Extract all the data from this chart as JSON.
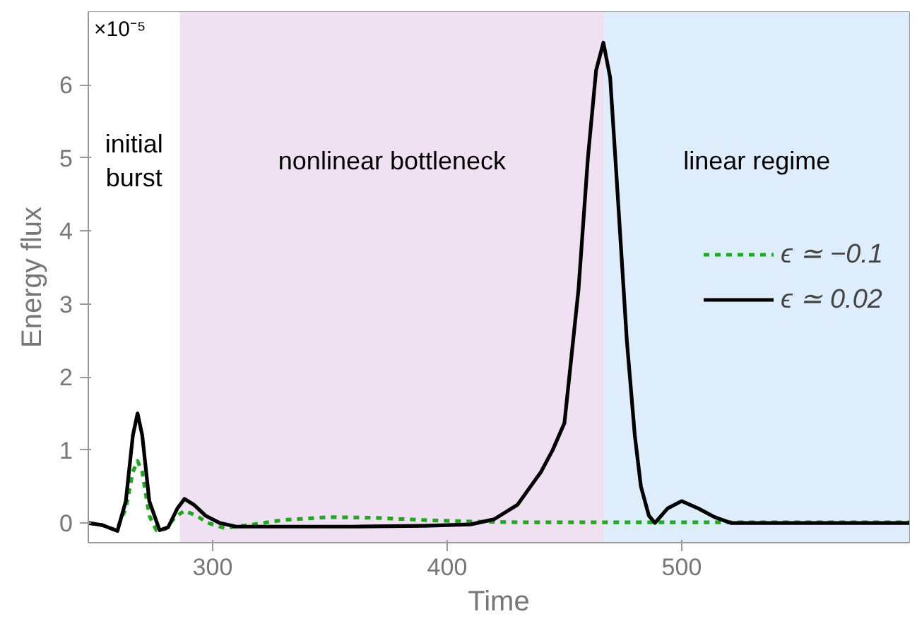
{
  "chart_data": {
    "type": "line",
    "xlabel": "Time",
    "ylabel": "Energy flux",
    "annotations": [
      "×10⁻⁵"
    ],
    "xlim": [
      247,
      597
    ],
    "ylim": [
      -0.27,
      7
    ],
    "xticks": [
      300,
      400,
      500
    ],
    "yticks": [
      0,
      1,
      2,
      3,
      4,
      5,
      6
    ],
    "bands": [
      {
        "axis": "x",
        "from": 247,
        "to": 286,
        "label": "initial\nburst",
        "color": "#ffffff"
      },
      {
        "axis": "x",
        "from": 286,
        "to": 467,
        "label": "nonlinear bottleneck",
        "color": "#efe1f1"
      },
      {
        "axis": "x",
        "from": 467,
        "to": 597,
        "label": "linear regime",
        "color": "#ddedfc"
      }
    ],
    "legend": "right",
    "grid": false,
    "series": [
      {
        "name": "ϵ ≃ −0.1",
        "color": "#1aaa1a",
        "line_style": "dashed",
        "x": [
          247,
          253,
          259,
          263,
          266,
          268,
          270,
          273,
          276,
          280,
          284,
          288,
          293,
          298,
          305,
          315,
          330,
          350,
          370,
          390,
          410,
          430,
          460,
          500,
          540,
          597
        ],
        "values": [
          0,
          -0.03,
          -0.1,
          0.2,
          0.7,
          0.85,
          0.7,
          0.1,
          -0.1,
          -0.08,
          0.08,
          0.17,
          0.1,
          0.0,
          -0.07,
          -0.03,
          0.04,
          0.08,
          0.07,
          0.04,
          0.02,
          0.01,
          0.01,
          0.01,
          0.01,
          0.01
        ]
      },
      {
        "name": "ϵ ≃ 0.02",
        "color": "#000000",
        "line_style": "solid",
        "x": [
          247,
          253,
          259.4,
          263,
          266,
          268,
          270,
          273,
          277.4,
          281,
          285,
          288,
          292,
          297,
          303,
          310,
          330,
          360,
          390,
          410,
          420,
          430,
          440,
          445,
          450,
          456,
          460,
          463.5,
          466.6,
          469.5,
          472,
          476.6,
          480,
          482.6,
          486,
          488.6,
          494,
          500,
          507,
          514,
          521,
          540,
          597
        ],
        "values": [
          0,
          -0.03,
          -0.11,
          0.3,
          1.2,
          1.5,
          1.2,
          0.3,
          -0.1,
          -0.06,
          0.2,
          0.33,
          0.25,
          0.1,
          0.0,
          -0.05,
          -0.05,
          -0.05,
          -0.04,
          -0.02,
          0.05,
          0.25,
          0.7,
          1.0,
          1.37,
          3.2,
          5.0,
          6.2,
          6.58,
          6.1,
          4.85,
          2.5,
          1.2,
          0.5,
          0.1,
          0.0,
          0.2,
          0.3,
          0.2,
          0.08,
          0.0,
          0.0,
          0.0
        ]
      }
    ]
  }
}
